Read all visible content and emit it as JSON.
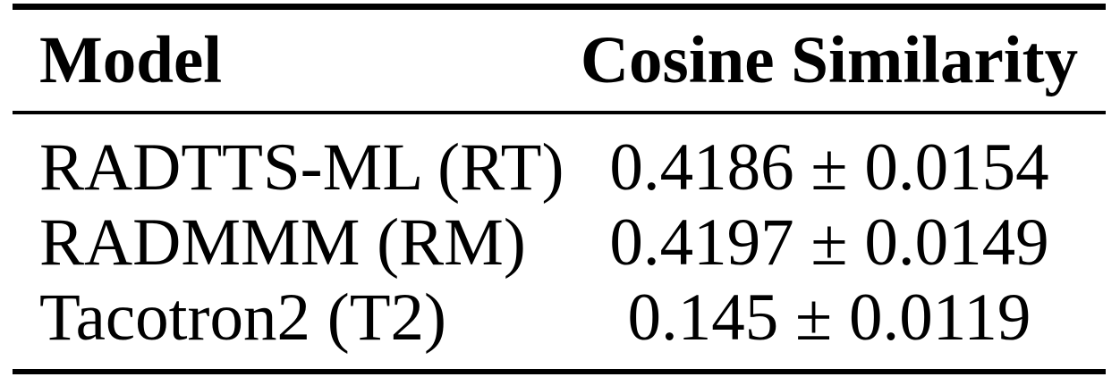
{
  "table": {
    "columns": [
      {
        "label": "Model"
      },
      {
        "label": "Cosine Similarity"
      }
    ],
    "rows": [
      {
        "model": "RADTTS-ML (RT)",
        "value": "0.4186 ± 0.0154",
        "mean": 0.4186,
        "std": 0.0154
      },
      {
        "model": "RADMMM (RM)",
        "value": "0.4197 ± 0.0149",
        "mean": 0.4197,
        "std": 0.0149
      },
      {
        "model": "Tacotron2 (T2)",
        "value": "0.145 ± 0.0119",
        "mean": 0.145,
        "std": 0.0119
      }
    ],
    "plus_minus_symbol": "±"
  },
  "colors": {
    "text": "#000000",
    "rule": "#000000",
    "background": "#ffffff"
  }
}
